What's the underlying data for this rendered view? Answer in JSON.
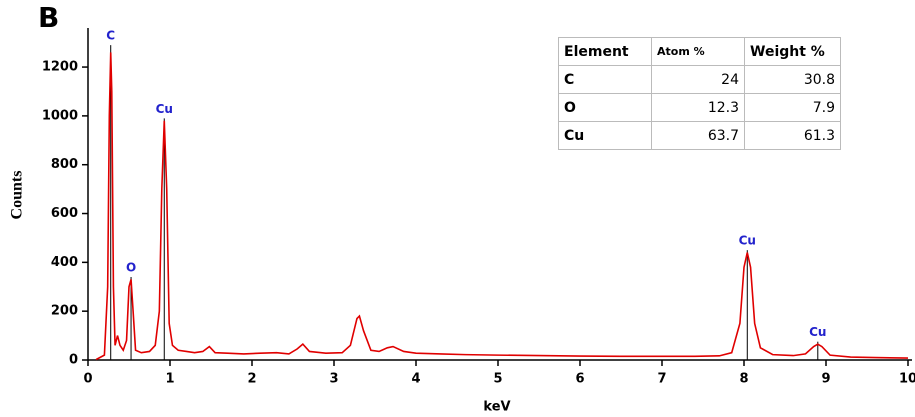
{
  "chart_data": {
    "type": "line",
    "panel_label": "B",
    "x_label": "keV",
    "y_label": "Counts",
    "xlim": [
      0,
      10
    ],
    "ylim": [
      0,
      1360
    ],
    "xticks": [
      0,
      1,
      2,
      3,
      4,
      5,
      6,
      7,
      8,
      9,
      10
    ],
    "yticks": [
      0,
      200,
      400,
      600,
      800,
      1000,
      1200
    ],
    "x": [
      0.1,
      0.2,
      0.24,
      0.26,
      0.277,
      0.29,
      0.31,
      0.33,
      0.36,
      0.39,
      0.43,
      0.47,
      0.5,
      0.525,
      0.55,
      0.58,
      0.65,
      0.75,
      0.82,
      0.87,
      0.9,
      0.93,
      0.96,
      0.99,
      1.03,
      1.1,
      1.2,
      1.3,
      1.4,
      1.48,
      1.55,
      1.7,
      1.9,
      2.1,
      2.3,
      2.45,
      2.55,
      2.62,
      2.7,
      2.9,
      3.1,
      3.2,
      3.28,
      3.31,
      3.36,
      3.45,
      3.55,
      3.65,
      3.72,
      3.85,
      4.0,
      4.3,
      4.6,
      5.0,
      5.5,
      6.0,
      6.5,
      7.0,
      7.4,
      7.7,
      7.85,
      7.95,
      8.0,
      8.04,
      8.08,
      8.13,
      8.2,
      8.35,
      8.6,
      8.75,
      8.85,
      8.9,
      8.95,
      9.05,
      9.3,
      9.6,
      10
    ],
    "series": [
      {
        "color": "#e00000",
        "values": [
          2,
          20,
          300,
          1000,
          1260,
          1100,
          300,
          60,
          100,
          60,
          40,
          80,
          300,
          330,
          200,
          40,
          30,
          35,
          60,
          200,
          700,
          980,
          700,
          150,
          60,
          40,
          35,
          30,
          35,
          55,
          30,
          28,
          25,
          28,
          30,
          25,
          45,
          65,
          35,
          28,
          30,
          60,
          170,
          180,
          120,
          40,
          35,
          50,
          55,
          35,
          28,
          25,
          22,
          20,
          18,
          16,
          15,
          15,
          15,
          17,
          30,
          150,
          380,
          440,
          380,
          150,
          50,
          22,
          18,
          25,
          55,
          65,
          55,
          20,
          12,
          10,
          8
        ]
      }
    ],
    "annotation_color": "#2222cc",
    "annotations": [
      {
        "label": "C",
        "x": 0.277,
        "y": 1290
      },
      {
        "label": "O",
        "x": 0.525,
        "y": 340
      },
      {
        "label": "Cu",
        "x": 0.93,
        "y": 990
      },
      {
        "label": "Cu",
        "x": 8.04,
        "y": 450
      },
      {
        "label": "Cu",
        "x": 8.9,
        "y": 75
      }
    ],
    "table": {
      "columns": [
        "Element",
        "Atom %",
        "Weight %"
      ],
      "rows": [
        [
          "C",
          24,
          30.8
        ],
        [
          "O",
          12.3,
          7.9
        ],
        [
          "Cu",
          63.7,
          61.3
        ]
      ]
    }
  }
}
